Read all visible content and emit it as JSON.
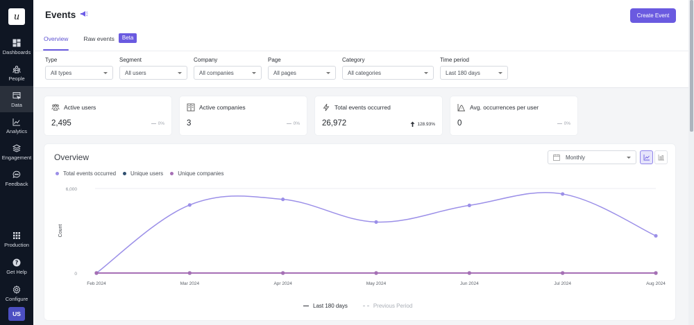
{
  "sidebar": {
    "logo": "u",
    "items": [
      {
        "label": "Dashboards",
        "icon": "dashboard-icon",
        "active": false
      },
      {
        "label": "People",
        "icon": "people-icon",
        "active": false
      },
      {
        "label": "Data",
        "icon": "data-icon",
        "active": true
      },
      {
        "label": "Analytics",
        "icon": "analytics-icon",
        "active": false
      },
      {
        "label": "Engagement",
        "icon": "layers-icon",
        "active": false
      },
      {
        "label": "Feedback",
        "icon": "chat-icon",
        "active": false
      }
    ],
    "bottom_items": [
      {
        "label": "Production",
        "icon": "grid-icon"
      },
      {
        "label": "Get Help",
        "icon": "help-icon"
      },
      {
        "label": "Configure",
        "icon": "gear-icon"
      }
    ],
    "avatar": "US"
  },
  "header": {
    "title": "Events",
    "title_icon": "megaphone-icon",
    "create_button": "Create Event",
    "tabs": [
      {
        "label": "Overview",
        "active": true
      },
      {
        "label": "Raw events",
        "active": false,
        "badge": "Beta"
      }
    ]
  },
  "filters": [
    {
      "label": "Type",
      "value": "All types",
      "width": 98
    },
    {
      "label": "Segment",
      "value": "All users",
      "width": 98
    },
    {
      "label": "Company",
      "value": "All companies",
      "width": 98
    },
    {
      "label": "Page",
      "value": "All pages",
      "width": 98
    },
    {
      "label": "Category",
      "value": "All categories",
      "width": 132
    },
    {
      "label": "Time period",
      "value": "Last 180 days",
      "width": 98
    }
  ],
  "stats": [
    {
      "label": "Active users",
      "icon": "users-icon",
      "value": "2,495",
      "change": "0%",
      "trend": "flat"
    },
    {
      "label": "Active companies",
      "icon": "building-icon",
      "value": "3",
      "change": "0%",
      "trend": "flat"
    },
    {
      "label": "Total events occurred",
      "icon": "lightning-icon",
      "value": "26,972",
      "change": "128.93%",
      "trend": "up"
    },
    {
      "label": "Avg. occurrences per user",
      "icon": "bell-curve-icon",
      "value": "0",
      "change": "0%",
      "trend": "flat"
    }
  ],
  "overview": {
    "title": "Overview",
    "period_select": "Monthly",
    "bottom_legend": {
      "current": "Last 180 days",
      "previous": "Previous Period"
    }
  },
  "colors": {
    "accent": "#6a5ae0",
    "total_events": "#9b8fe8",
    "unique_users": "#2f4f6f",
    "unique_companies": "#a66fb5",
    "sidebar_bg": "#0f1623"
  },
  "chart_data": {
    "type": "line",
    "title": "Overview",
    "xlabel": "",
    "ylabel": "Count",
    "categories": [
      "Feb 2024",
      "Mar 2024",
      "Apr 2024",
      "May 2024",
      "Jun 2024",
      "Jul 2024",
      "Aug 2024"
    ],
    "ylim": [
      0,
      6000
    ],
    "yticks": [
      "0",
      "6,000"
    ],
    "grid": true,
    "legend_position": "top-left",
    "series": [
      {
        "name": "Total events occurred",
        "color": "#9b8fe8",
        "values": [
          0,
          4830,
          5230,
          3620,
          4800,
          5610,
          2640
        ]
      },
      {
        "name": "Unique users",
        "color": "#2f4f6f",
        "values": [
          0,
          0,
          0,
          0,
          0,
          0,
          0
        ]
      },
      {
        "name": "Unique companies",
        "color": "#a66fb5",
        "values": [
          0,
          0,
          0,
          0,
          0,
          0,
          0
        ]
      }
    ]
  }
}
